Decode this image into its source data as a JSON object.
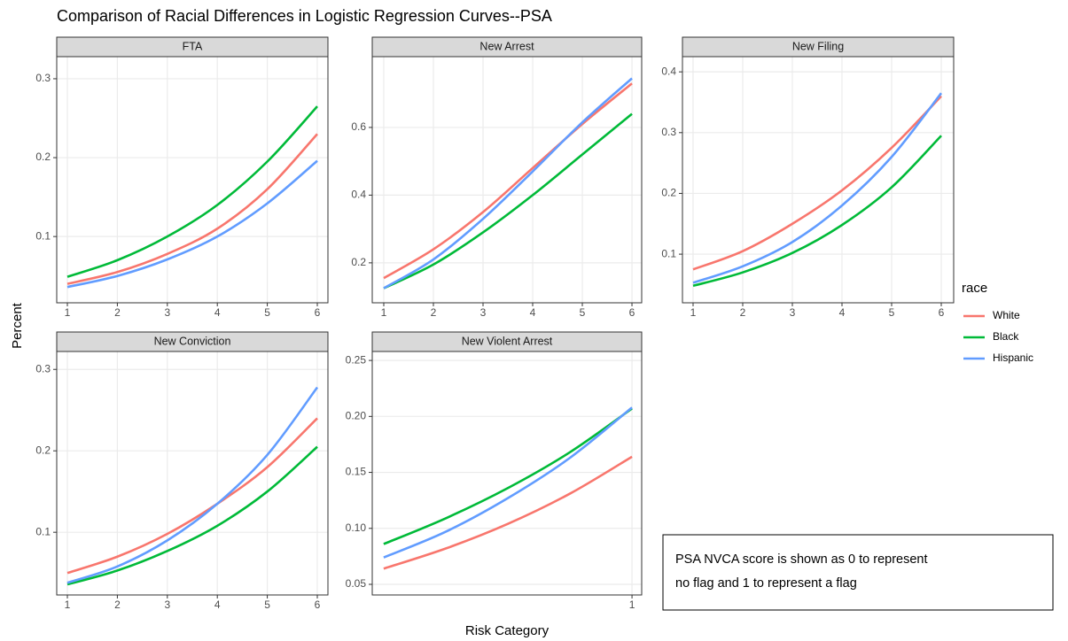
{
  "title": "Comparison of Racial Differences in Logistic Regression Curves--PSA",
  "y_label": "Percent",
  "x_label": "Risk Category",
  "legend_title": "race",
  "annotation": [
    "PSA NVCA score is shown as 0 to represent",
    "no flag and 1 to represent a flag"
  ],
  "chart_data": [
    {
      "type": "line",
      "title": "FTA",
      "x": [
        1,
        2,
        3,
        4,
        5,
        6
      ],
      "series": [
        {
          "name": "White",
          "color": "#F8766D",
          "values": [
            0.04,
            0.055,
            0.078,
            0.11,
            0.16,
            0.23
          ]
        },
        {
          "name": "Black",
          "color": "#00BA38",
          "values": [
            0.049,
            0.07,
            0.1,
            0.14,
            0.195,
            0.265
          ]
        },
        {
          "name": "Hispanic",
          "color": "#619CFF",
          "values": [
            0.036,
            0.05,
            0.071,
            0.1,
            0.142,
            0.196
          ]
        }
      ],
      "xlim": [
        0.787,
        6.213
      ],
      "xticks": [
        1,
        2,
        3,
        4,
        5,
        6
      ],
      "ylim": [
        0.016,
        0.328
      ],
      "yticks": [
        0.1,
        0.2,
        0.3
      ],
      "grid": true
    },
    {
      "type": "line",
      "title": "New Arrest",
      "x": [
        1,
        2,
        3,
        4,
        5,
        6
      ],
      "series": [
        {
          "name": "White",
          "color": "#F8766D",
          "values": [
            0.155,
            0.24,
            0.35,
            0.48,
            0.61,
            0.73
          ]
        },
        {
          "name": "Black",
          "color": "#00BA38",
          "values": [
            0.125,
            0.195,
            0.29,
            0.4,
            0.52,
            0.64
          ]
        },
        {
          "name": "Hispanic",
          "color": "#619CFF",
          "values": [
            0.125,
            0.21,
            0.33,
            0.47,
            0.615,
            0.745
          ]
        }
      ],
      "xlim": [
        0.768,
        6.196
      ],
      "xticks": [
        1,
        2,
        3,
        4,
        5,
        6
      ],
      "ylim": [
        0.082,
        0.809
      ],
      "yticks": [
        0.2,
        0.4,
        0.6
      ],
      "grid": true
    },
    {
      "type": "line",
      "title": "New Filing",
      "x": [
        1,
        2,
        3,
        4,
        5,
        6
      ],
      "series": [
        {
          "name": "White",
          "color": "#F8766D",
          "values": [
            0.075,
            0.105,
            0.15,
            0.205,
            0.275,
            0.36
          ]
        },
        {
          "name": "Black",
          "color": "#00BA38",
          "values": [
            0.048,
            0.07,
            0.102,
            0.148,
            0.21,
            0.295
          ]
        },
        {
          "name": "Hispanic",
          "color": "#619CFF",
          "values": [
            0.053,
            0.08,
            0.12,
            0.18,
            0.26,
            0.365
          ]
        }
      ],
      "xlim": [
        0.786,
        6.25
      ],
      "xticks": [
        1,
        2,
        3,
        4,
        5,
        6
      ],
      "ylim": [
        0.02,
        0.425
      ],
      "yticks": [
        0.1,
        0.2,
        0.3,
        0.4
      ],
      "grid": true
    },
    {
      "type": "line",
      "title": "New Conviction",
      "x": [
        1,
        2,
        3,
        4,
        5,
        6
      ],
      "series": [
        {
          "name": "White",
          "color": "#F8766D",
          "values": [
            0.05,
            0.07,
            0.098,
            0.135,
            0.18,
            0.24
          ]
        },
        {
          "name": "Black",
          "color": "#00BA38",
          "values": [
            0.036,
            0.053,
            0.077,
            0.108,
            0.15,
            0.205
          ]
        },
        {
          "name": "Hispanic",
          "color": "#619CFF",
          "values": [
            0.038,
            0.058,
            0.09,
            0.135,
            0.195,
            0.278
          ]
        }
      ],
      "xlim": [
        0.787,
        6.213
      ],
      "xticks": [
        1,
        2,
        3,
        4,
        5,
        6
      ],
      "ylim": [
        0.023,
        0.322
      ],
      "yticks": [
        0.1,
        0.2,
        0.3
      ],
      "grid": true
    },
    {
      "type": "line",
      "title": "New Violent Arrest",
      "x": [
        0,
        0.25,
        0.5,
        0.75,
        1
      ],
      "series": [
        {
          "name": "White",
          "color": "#F8766D",
          "values": [
            0.064,
            0.082,
            0.104,
            0.131,
            0.164
          ]
        },
        {
          "name": "Black",
          "color": "#00BA38",
          "values": [
            0.086,
            0.109,
            0.136,
            0.168,
            0.207
          ]
        },
        {
          "name": "Hispanic",
          "color": "#619CFF",
          "values": [
            0.074,
            0.097,
            0.127,
            0.163,
            0.208
          ]
        }
      ],
      "xlim": [
        -0.046,
        1.039
      ],
      "xticks": [
        1
      ],
      "ylim": [
        0.0405,
        0.258
      ],
      "yticks": [
        0.05,
        {
          "value": 0.1,
          "label": "0.10"
        },
        0.15,
        {
          "value": 0.2,
          "label": "0.20"
        },
        0.25
      ],
      "grid": true
    }
  ]
}
